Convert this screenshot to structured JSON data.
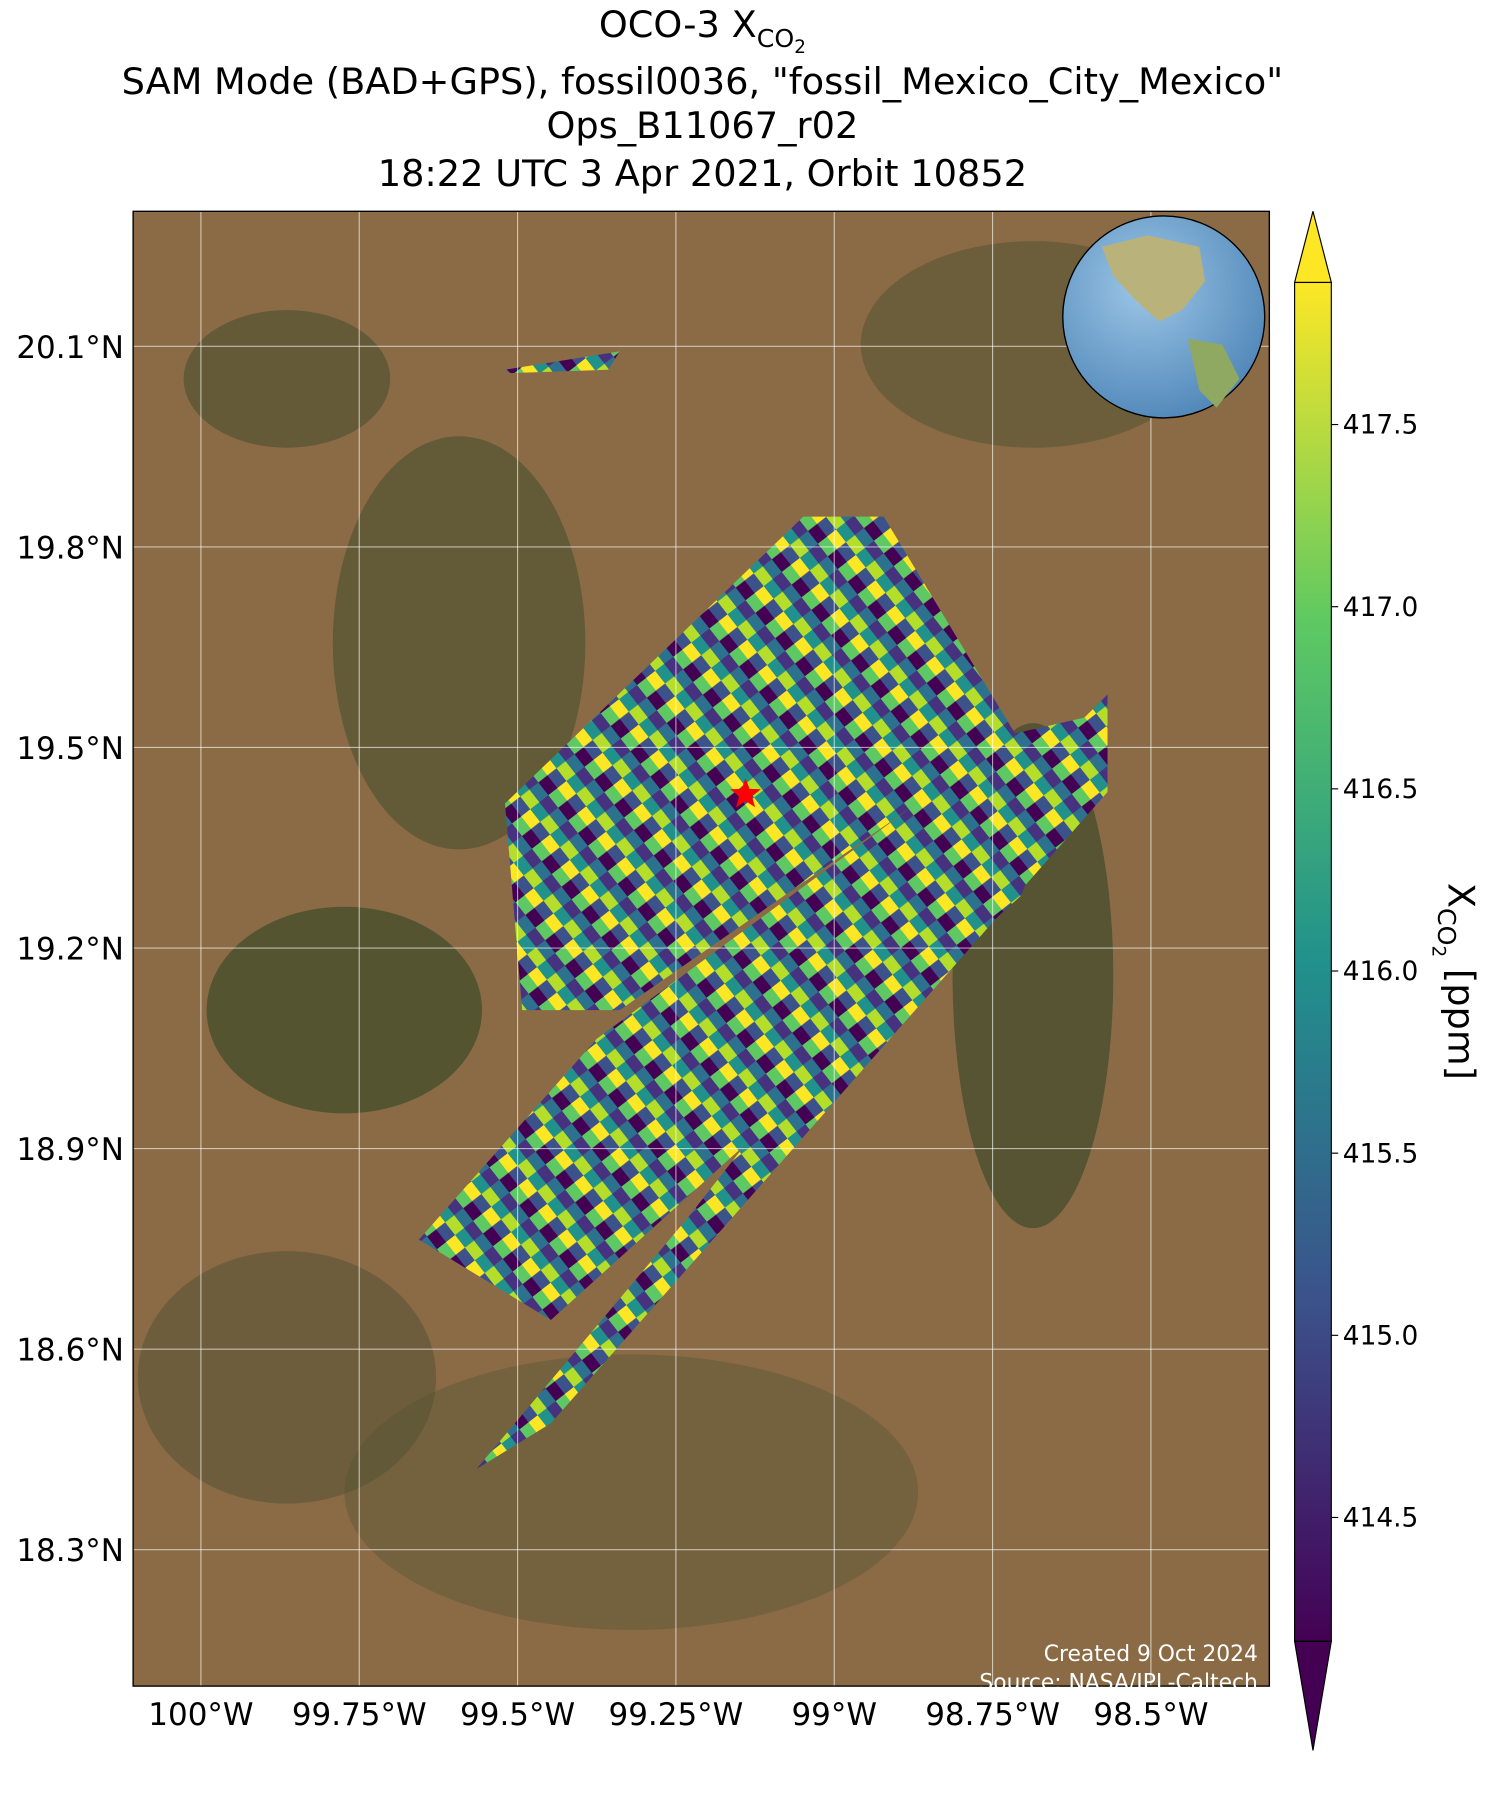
{
  "chart_data": {
    "type": "map",
    "title": {
      "line1": {
        "prefix": "OCO-3 X",
        "sub": "CO",
        "subsub": "2"
      },
      "line2": "SAM Mode (BAD+GPS), fossil0036, \"fossil_Mexico_City_Mexico\"",
      "line3": "Ops_B11067_r02",
      "line4": "18:22 UTC 3 Apr 2021, Orbit 10852"
    },
    "xlim": [
      -100.107,
      -98.313
    ],
    "ylim": [
      18.096,
      20.302
    ],
    "xticks": [
      {
        "value": -100,
        "label": "100°W"
      },
      {
        "value": -99.75,
        "label": "99.75°W"
      },
      {
        "value": -99.5,
        "label": "99.5°W"
      },
      {
        "value": -99.25,
        "label": "99.25°W"
      },
      {
        "value": -99,
        "label": "99°W"
      },
      {
        "value": -98.75,
        "label": "98.75°W"
      },
      {
        "value": -98.5,
        "label": "98.5°W"
      }
    ],
    "yticks": [
      {
        "value": 20.1,
        "label": "20.1°N"
      },
      {
        "value": 19.8,
        "label": "19.8°N"
      },
      {
        "value": 19.5,
        "label": "19.5°N"
      },
      {
        "value": 19.2,
        "label": "19.2°N"
      },
      {
        "value": 18.9,
        "label": "18.9°N"
      },
      {
        "value": 18.6,
        "label": "18.6°N"
      },
      {
        "value": 18.3,
        "label": "18.3°N"
      }
    ],
    "grid": true,
    "target": {
      "lon": -99.14,
      "lat": 19.43,
      "color": "#ff0000"
    },
    "colorbar": {
      "colormap": "viridis",
      "clim": [
        414.16,
        417.89
      ],
      "extend": "both",
      "ticks": [
        414.5,
        415.0,
        415.5,
        416.0,
        416.5,
        417.0,
        417.5
      ],
      "label": {
        "prefix": "X",
        "sub": "CO",
        "subsub": "2",
        "suffix": " [ppm]"
      }
    },
    "credits": [
      "Created 9 Oct 2024",
      "Source: NASA/JPL-Caltech"
    ]
  }
}
